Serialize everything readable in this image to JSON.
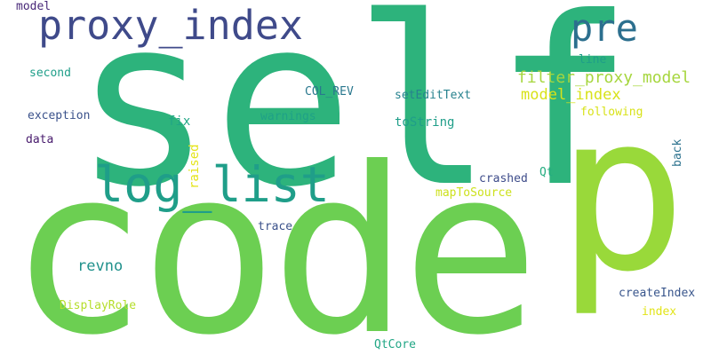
{
  "words": [
    {
      "text": "self",
      "color": "#2db37c"
    },
    {
      "text": "code",
      "color": "#6ccf52"
    },
    {
      "text": "p",
      "color": "#99d93a"
    },
    {
      "text": "proxy_index",
      "color": "#3f4a8a"
    },
    {
      "text": "log_list",
      "color": "#1f9e89"
    },
    {
      "text": "pre",
      "color": "#2c6f8e"
    },
    {
      "text": "filter_proxy_model",
      "color": "#a6d63e"
    },
    {
      "text": "model_index",
      "color": "#d8e219"
    },
    {
      "text": "model",
      "color": "#482878"
    },
    {
      "text": "second",
      "color": "#1f9e89"
    },
    {
      "text": "exception",
      "color": "#3b528b"
    },
    {
      "text": "data",
      "color": "#481b6d"
    },
    {
      "text": "fix",
      "color": "#21a685"
    },
    {
      "text": "warnings",
      "color": "#1fa187"
    },
    {
      "text": "COL_REV",
      "color": "#2a788e"
    },
    {
      "text": "setEditText",
      "color": "#26828e"
    },
    {
      "text": "line",
      "color": "#1f9e89"
    },
    {
      "text": "following",
      "color": "#d8e219"
    },
    {
      "text": "toString",
      "color": "#1f9e89"
    },
    {
      "text": "raised",
      "color": "#e4e419"
    },
    {
      "text": "back",
      "color": "#2c728e"
    },
    {
      "text": "crashed",
      "color": "#3e4c8a"
    },
    {
      "text": "Qt",
      "color": "#26ad81"
    },
    {
      "text": "mapToSource",
      "color": "#cde11d"
    },
    {
      "text": "revno",
      "color": "#21918c"
    },
    {
      "text": "trace",
      "color": "#3b528b"
    },
    {
      "text": "createIndex",
      "color": "#39568c"
    },
    {
      "text": "DisplayRole",
      "color": "#b5de2b"
    },
    {
      "text": "index",
      "color": "#e2e418"
    },
    {
      "text": "QtCore",
      "color": "#21a685"
    }
  ]
}
